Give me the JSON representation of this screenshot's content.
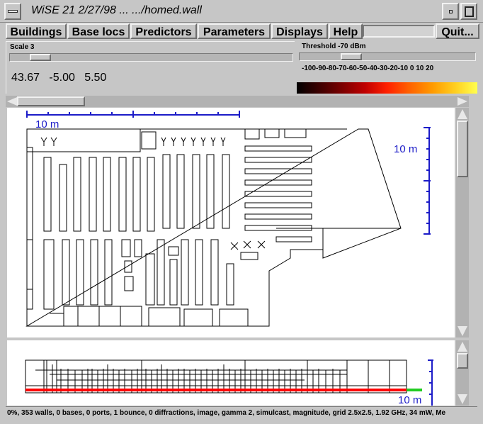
{
  "window": {
    "title": "WiSE 21 2/27/98  ...  .../homed.wall"
  },
  "menu": {
    "items": [
      "Buildings",
      "Base locs",
      "Predictors",
      "Parameters",
      "Displays",
      "Help"
    ],
    "quit": "Quit..."
  },
  "scale": {
    "label": "Scale 3"
  },
  "threshold": {
    "label": "Threshold  -70 dBm",
    "ticks": "-100-90-80-70-60-50-40-30-20-10  0   10  20"
  },
  "coords": {
    "x": "43.67",
    "y": "-5.00",
    "z": "5.50"
  },
  "scalebars": {
    "top": "10 m",
    "right": "10 m",
    "profile": "10 m"
  },
  "status": "0%, 353 walls, 0 bases, 0 ports, 1 bounce, 0 diffractions, image, gamma 2, simulcast, magnitude, grid 2.5x2.5, 1.92 GHz, 34 mW, Me",
  "colors": {
    "scalebar": "#1c1cc8",
    "profile_line": "#ff0000",
    "profile_end": "#22cc22"
  }
}
